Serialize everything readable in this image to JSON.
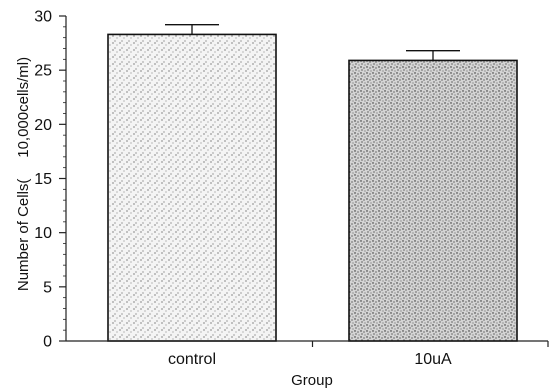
{
  "chart_data": {
    "type": "bar",
    "categories": [
      "control",
      "10uA"
    ],
    "values": [
      28.3,
      25.9
    ],
    "error_upper": [
      29.2,
      26.8
    ],
    "xlabel": "Group",
    "ylabel": "Number of Cells(     10,000cells/ml)",
    "ylim": [
      0,
      30
    ],
    "yticks": [
      0,
      5,
      10,
      15,
      20,
      25,
      30
    ],
    "grid": false,
    "legend": "none",
    "bar_fill": "stippled gray",
    "colors": {
      "axis": "#222222",
      "bar_outline": "#111111",
      "bar_base": "#f2f2f2",
      "stipple": "#2a2a2a"
    }
  }
}
